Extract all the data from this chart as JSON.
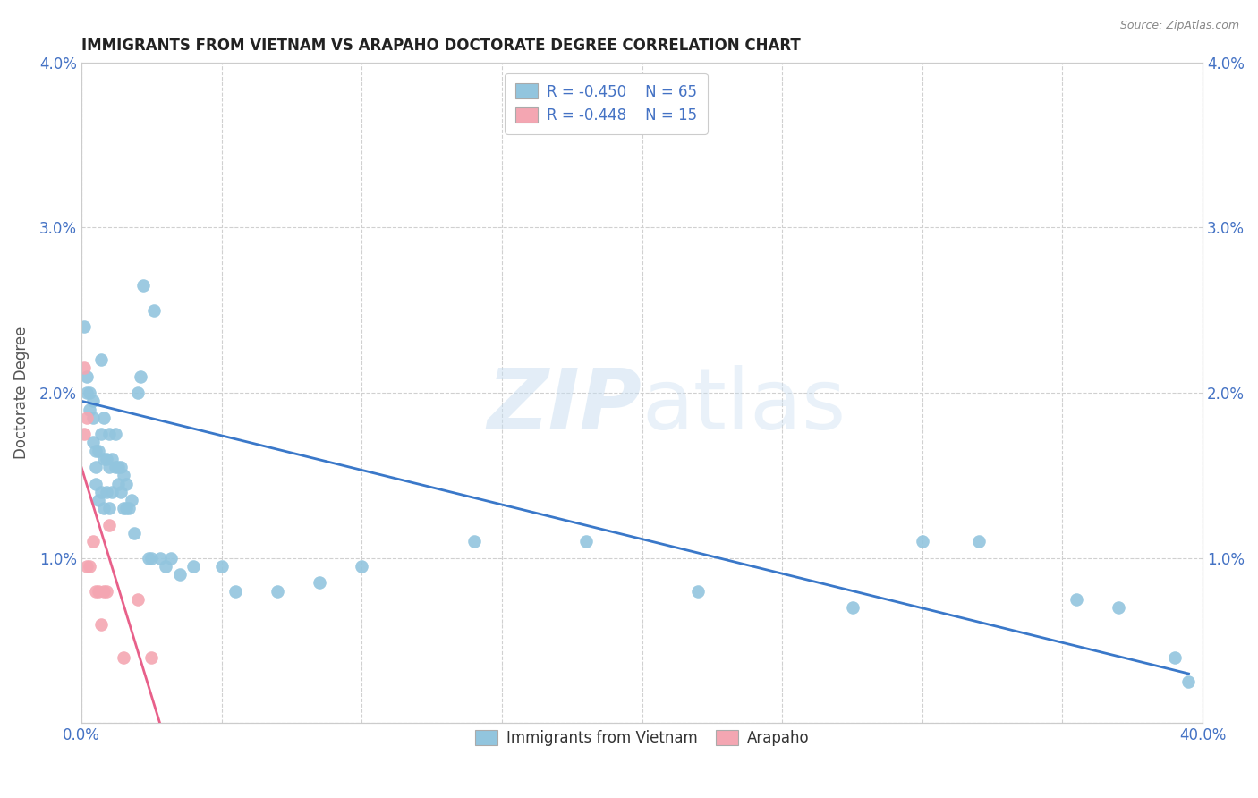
{
  "title": "IMMIGRANTS FROM VIETNAM VS ARAPAHO DOCTORATE DEGREE CORRELATION CHART",
  "source": "Source: ZipAtlas.com",
  "ylabel": "Doctorate Degree",
  "xlim": [
    0,
    0.4
  ],
  "ylim": [
    0,
    0.04
  ],
  "legend_r1": "R = -0.450",
  "legend_n1": "N = 65",
  "legend_r2": "R = -0.448",
  "legend_n2": "N = 15",
  "color_blue": "#92c5de",
  "color_pink": "#f4a6b2",
  "color_blue_line": "#3a78c9",
  "color_pink_line": "#e8608a",
  "watermark_color": "#c8ddf0",
  "blue_scatter_x": [
    0.001,
    0.002,
    0.002,
    0.003,
    0.003,
    0.004,
    0.004,
    0.004,
    0.005,
    0.005,
    0.005,
    0.006,
    0.006,
    0.007,
    0.007,
    0.007,
    0.008,
    0.008,
    0.008,
    0.009,
    0.009,
    0.01,
    0.01,
    0.01,
    0.011,
    0.011,
    0.012,
    0.012,
    0.013,
    0.013,
    0.014,
    0.014,
    0.015,
    0.015,
    0.016,
    0.016,
    0.017,
    0.018,
    0.019,
    0.02,
    0.021,
    0.022,
    0.024,
    0.025,
    0.026,
    0.028,
    0.03,
    0.032,
    0.035,
    0.04,
    0.05,
    0.055,
    0.07,
    0.085,
    0.1,
    0.14,
    0.18,
    0.22,
    0.275,
    0.3,
    0.32,
    0.355,
    0.37,
    0.39,
    0.395
  ],
  "blue_scatter_y": [
    0.024,
    0.021,
    0.02,
    0.019,
    0.02,
    0.017,
    0.0185,
    0.0195,
    0.0155,
    0.0165,
    0.0145,
    0.0165,
    0.0135,
    0.022,
    0.0175,
    0.014,
    0.0185,
    0.016,
    0.013,
    0.016,
    0.014,
    0.0175,
    0.0155,
    0.013,
    0.016,
    0.014,
    0.0175,
    0.0155,
    0.0155,
    0.0145,
    0.0155,
    0.014,
    0.015,
    0.013,
    0.0145,
    0.013,
    0.013,
    0.0135,
    0.0115,
    0.02,
    0.021,
    0.0265,
    0.01,
    0.01,
    0.025,
    0.01,
    0.0095,
    0.01,
    0.009,
    0.0095,
    0.0095,
    0.008,
    0.008,
    0.0085,
    0.0095,
    0.011,
    0.011,
    0.008,
    0.007,
    0.011,
    0.011,
    0.0075,
    0.007,
    0.004,
    0.0025
  ],
  "pink_scatter_x": [
    0.001,
    0.001,
    0.002,
    0.002,
    0.003,
    0.004,
    0.005,
    0.006,
    0.007,
    0.008,
    0.009,
    0.01,
    0.015,
    0.02,
    0.025
  ],
  "pink_scatter_y": [
    0.0215,
    0.0175,
    0.0185,
    0.0095,
    0.0095,
    0.011,
    0.008,
    0.008,
    0.006,
    0.008,
    0.008,
    0.012,
    0.004,
    0.0075,
    0.004
  ],
  "blue_line_x": [
    0.0,
    0.395
  ],
  "blue_line_y": [
    0.0195,
    0.003
  ],
  "pink_line_x": [
    0.0,
    0.028
  ],
  "pink_line_y": [
    0.0155,
    0.0
  ],
  "background_color": "#ffffff",
  "grid_color": "#d0d0d0"
}
